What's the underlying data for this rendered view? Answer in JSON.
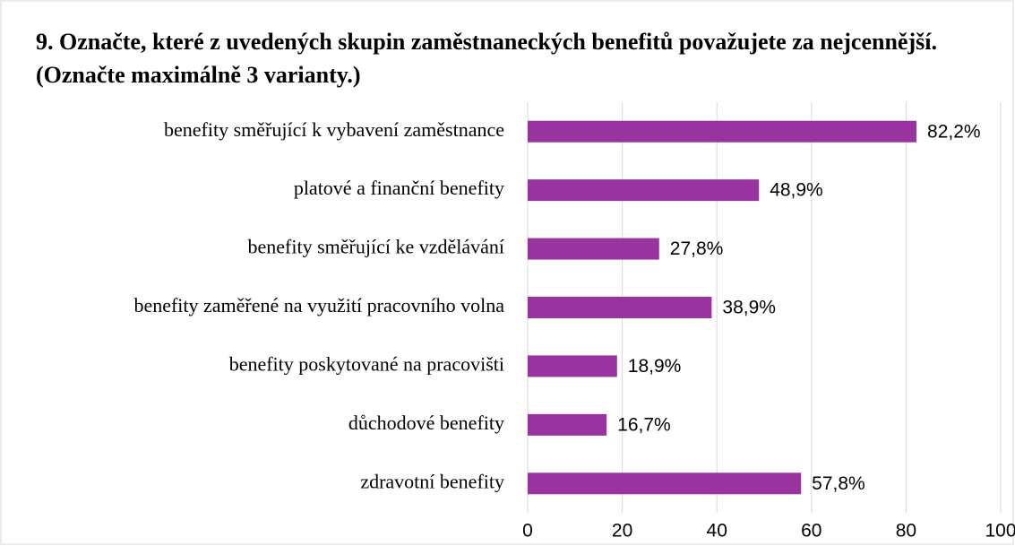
{
  "chart_data": {
    "type": "bar",
    "orientation": "horizontal",
    "title": "9. Označte, které z uvedených skupin zaměstnaneckých benefitů považujete za nejcennější. (Označte maximálně 3 varianty.)",
    "categories": [
      "benefity směřující k vybavení zaměstnance",
      "platové a finanční benefity",
      "benefity směřující ke vzdělávání",
      "benefity zaměřené na využití pracovního volna",
      "benefity poskytované na pracovišti",
      "důchodové benefity",
      "zdravotní benefity"
    ],
    "values": [
      82.2,
      48.9,
      27.8,
      38.9,
      18.9,
      16.7,
      57.8
    ],
    "value_labels": [
      "82,2%",
      "48,9%",
      "27,8%",
      "38,9%",
      "18,9%",
      "16,7%",
      "57,8%"
    ],
    "color": "#9933a0",
    "xlim": [
      0,
      100
    ],
    "xticks": [
      0,
      20,
      40,
      60,
      80,
      100
    ],
    "grid": true
  }
}
